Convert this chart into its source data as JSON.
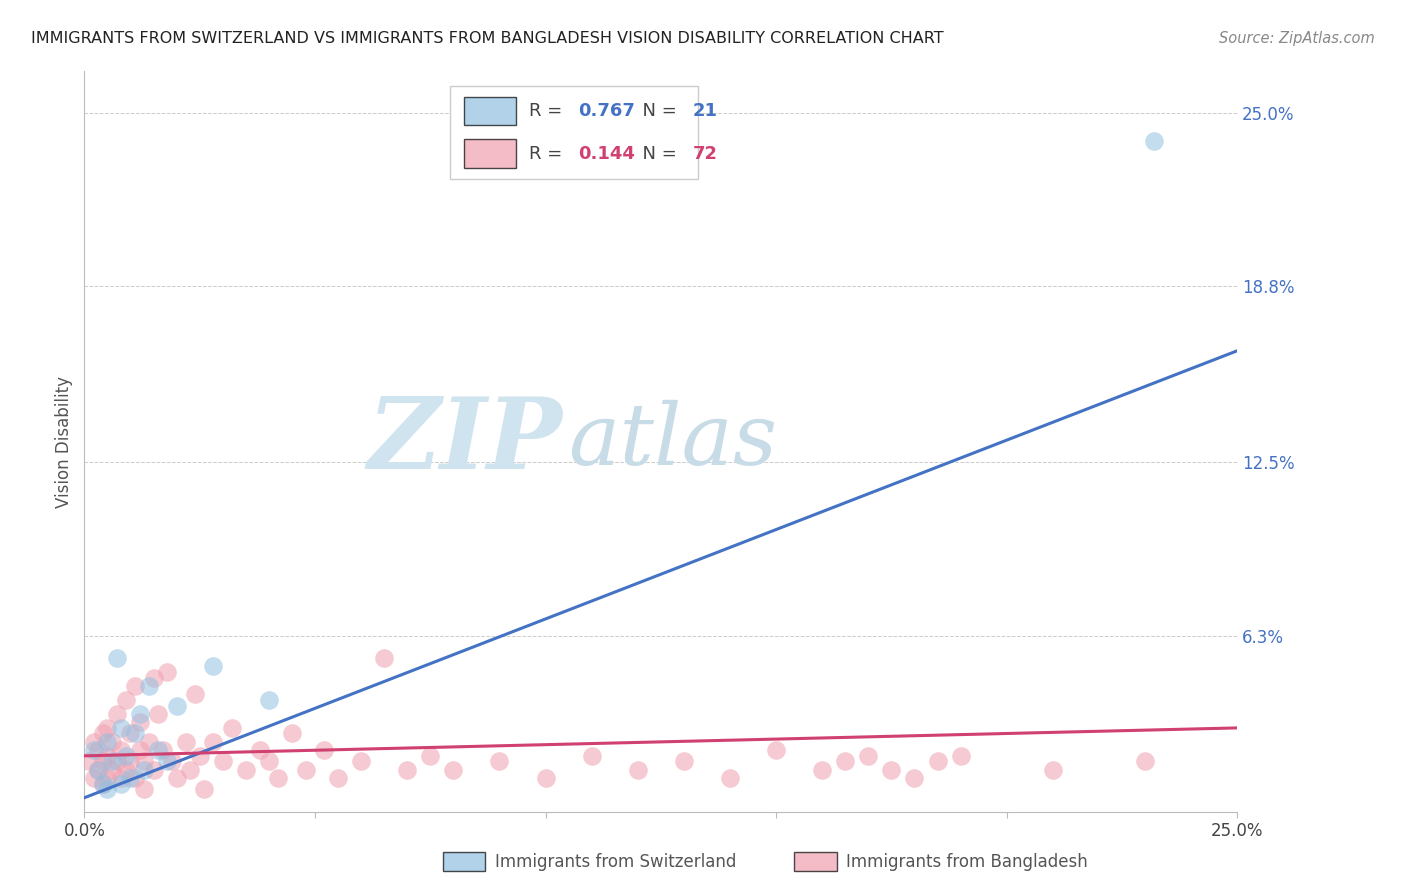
{
  "title": "IMMIGRANTS FROM SWITZERLAND VS IMMIGRANTS FROM BANGLADESH VISION DISABILITY CORRELATION CHART",
  "source": "Source: ZipAtlas.com",
  "ylabel": "Vision Disability",
  "xlim": [
    0.0,
    0.25
  ],
  "ylim": [
    0.0,
    0.265
  ],
  "color_swiss": "#92c0e0",
  "color_bang": "#f0a0b0",
  "line_color_swiss": "#4472c4",
  "line_color_bang": "#d04070",
  "R_swiss": 0.767,
  "N_swiss": 21,
  "R_bang": 0.144,
  "N_bang": 72,
  "watermark_zip": "ZIP",
  "watermark_atlas": "atlas",
  "swiss_line_x0": 0.0,
  "swiss_line_y0": 0.005,
  "swiss_line_x1": 0.25,
  "swiss_line_y1": 0.165,
  "bang_line_x0": 0.0,
  "bang_line_y0": 0.02,
  "bang_line_x1": 0.25,
  "bang_line_y1": 0.03,
  "swiss_x": [
    0.002,
    0.003,
    0.004,
    0.005,
    0.005,
    0.006,
    0.007,
    0.008,
    0.008,
    0.009,
    0.01,
    0.011,
    0.012,
    0.013,
    0.014,
    0.016,
    0.018,
    0.02,
    0.028,
    0.04,
    0.232
  ],
  "swiss_y": [
    0.022,
    0.015,
    0.01,
    0.025,
    0.008,
    0.018,
    0.055,
    0.03,
    0.01,
    0.02,
    0.012,
    0.028,
    0.035,
    0.015,
    0.045,
    0.022,
    0.018,
    0.038,
    0.052,
    0.04,
    0.24
  ],
  "bang_x": [
    0.001,
    0.002,
    0.002,
    0.003,
    0.003,
    0.004,
    0.004,
    0.004,
    0.005,
    0.005,
    0.005,
    0.006,
    0.006,
    0.007,
    0.007,
    0.008,
    0.008,
    0.009,
    0.009,
    0.01,
    0.01,
    0.011,
    0.011,
    0.012,
    0.012,
    0.013,
    0.013,
    0.014,
    0.015,
    0.015,
    0.016,
    0.017,
    0.018,
    0.019,
    0.02,
    0.022,
    0.023,
    0.024,
    0.025,
    0.026,
    0.028,
    0.03,
    0.032,
    0.035,
    0.038,
    0.04,
    0.042,
    0.045,
    0.048,
    0.052,
    0.055,
    0.06,
    0.065,
    0.07,
    0.075,
    0.08,
    0.09,
    0.1,
    0.11,
    0.12,
    0.13,
    0.14,
    0.15,
    0.16,
    0.165,
    0.17,
    0.175,
    0.18,
    0.185,
    0.19,
    0.21,
    0.23
  ],
  "bang_y": [
    0.018,
    0.025,
    0.012,
    0.015,
    0.022,
    0.01,
    0.018,
    0.028,
    0.012,
    0.02,
    0.03,
    0.015,
    0.025,
    0.018,
    0.035,
    0.012,
    0.022,
    0.04,
    0.015,
    0.018,
    0.028,
    0.012,
    0.045,
    0.022,
    0.032,
    0.018,
    0.008,
    0.025,
    0.048,
    0.015,
    0.035,
    0.022,
    0.05,
    0.018,
    0.012,
    0.025,
    0.015,
    0.042,
    0.02,
    0.008,
    0.025,
    0.018,
    0.03,
    0.015,
    0.022,
    0.018,
    0.012,
    0.028,
    0.015,
    0.022,
    0.012,
    0.018,
    0.055,
    0.015,
    0.02,
    0.015,
    0.018,
    0.012,
    0.02,
    0.015,
    0.018,
    0.012,
    0.022,
    0.015,
    0.018,
    0.02,
    0.015,
    0.012,
    0.018,
    0.02,
    0.015,
    0.018
  ]
}
